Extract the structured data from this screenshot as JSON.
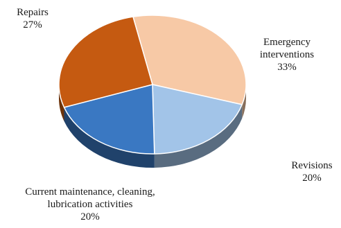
{
  "chart_data": {
    "type": "pie",
    "style": "3d",
    "slices": [
      {
        "label": "Emergency interventions",
        "label_lines": [
          "Emergency",
          "interventions"
        ],
        "value": 33,
        "display": "33%",
        "color": "#f7c9a6"
      },
      {
        "label": "Revisions",
        "label_lines": [
          "Revisions"
        ],
        "value": 20,
        "display": "20%",
        "color": "#a2c4e8"
      },
      {
        "label": "Current maintenance, cleaning, lubrication activities",
        "label_lines": [
          "Current maintenance, cleaning,",
          "lubrication activities"
        ],
        "value": 20,
        "display": "20%",
        "color": "#3a78c2"
      },
      {
        "label": "Repairs",
        "label_lines": [
          "Repairs"
        ],
        "value": 27,
        "display": "27%",
        "color": "#c55a11"
      }
    ]
  }
}
